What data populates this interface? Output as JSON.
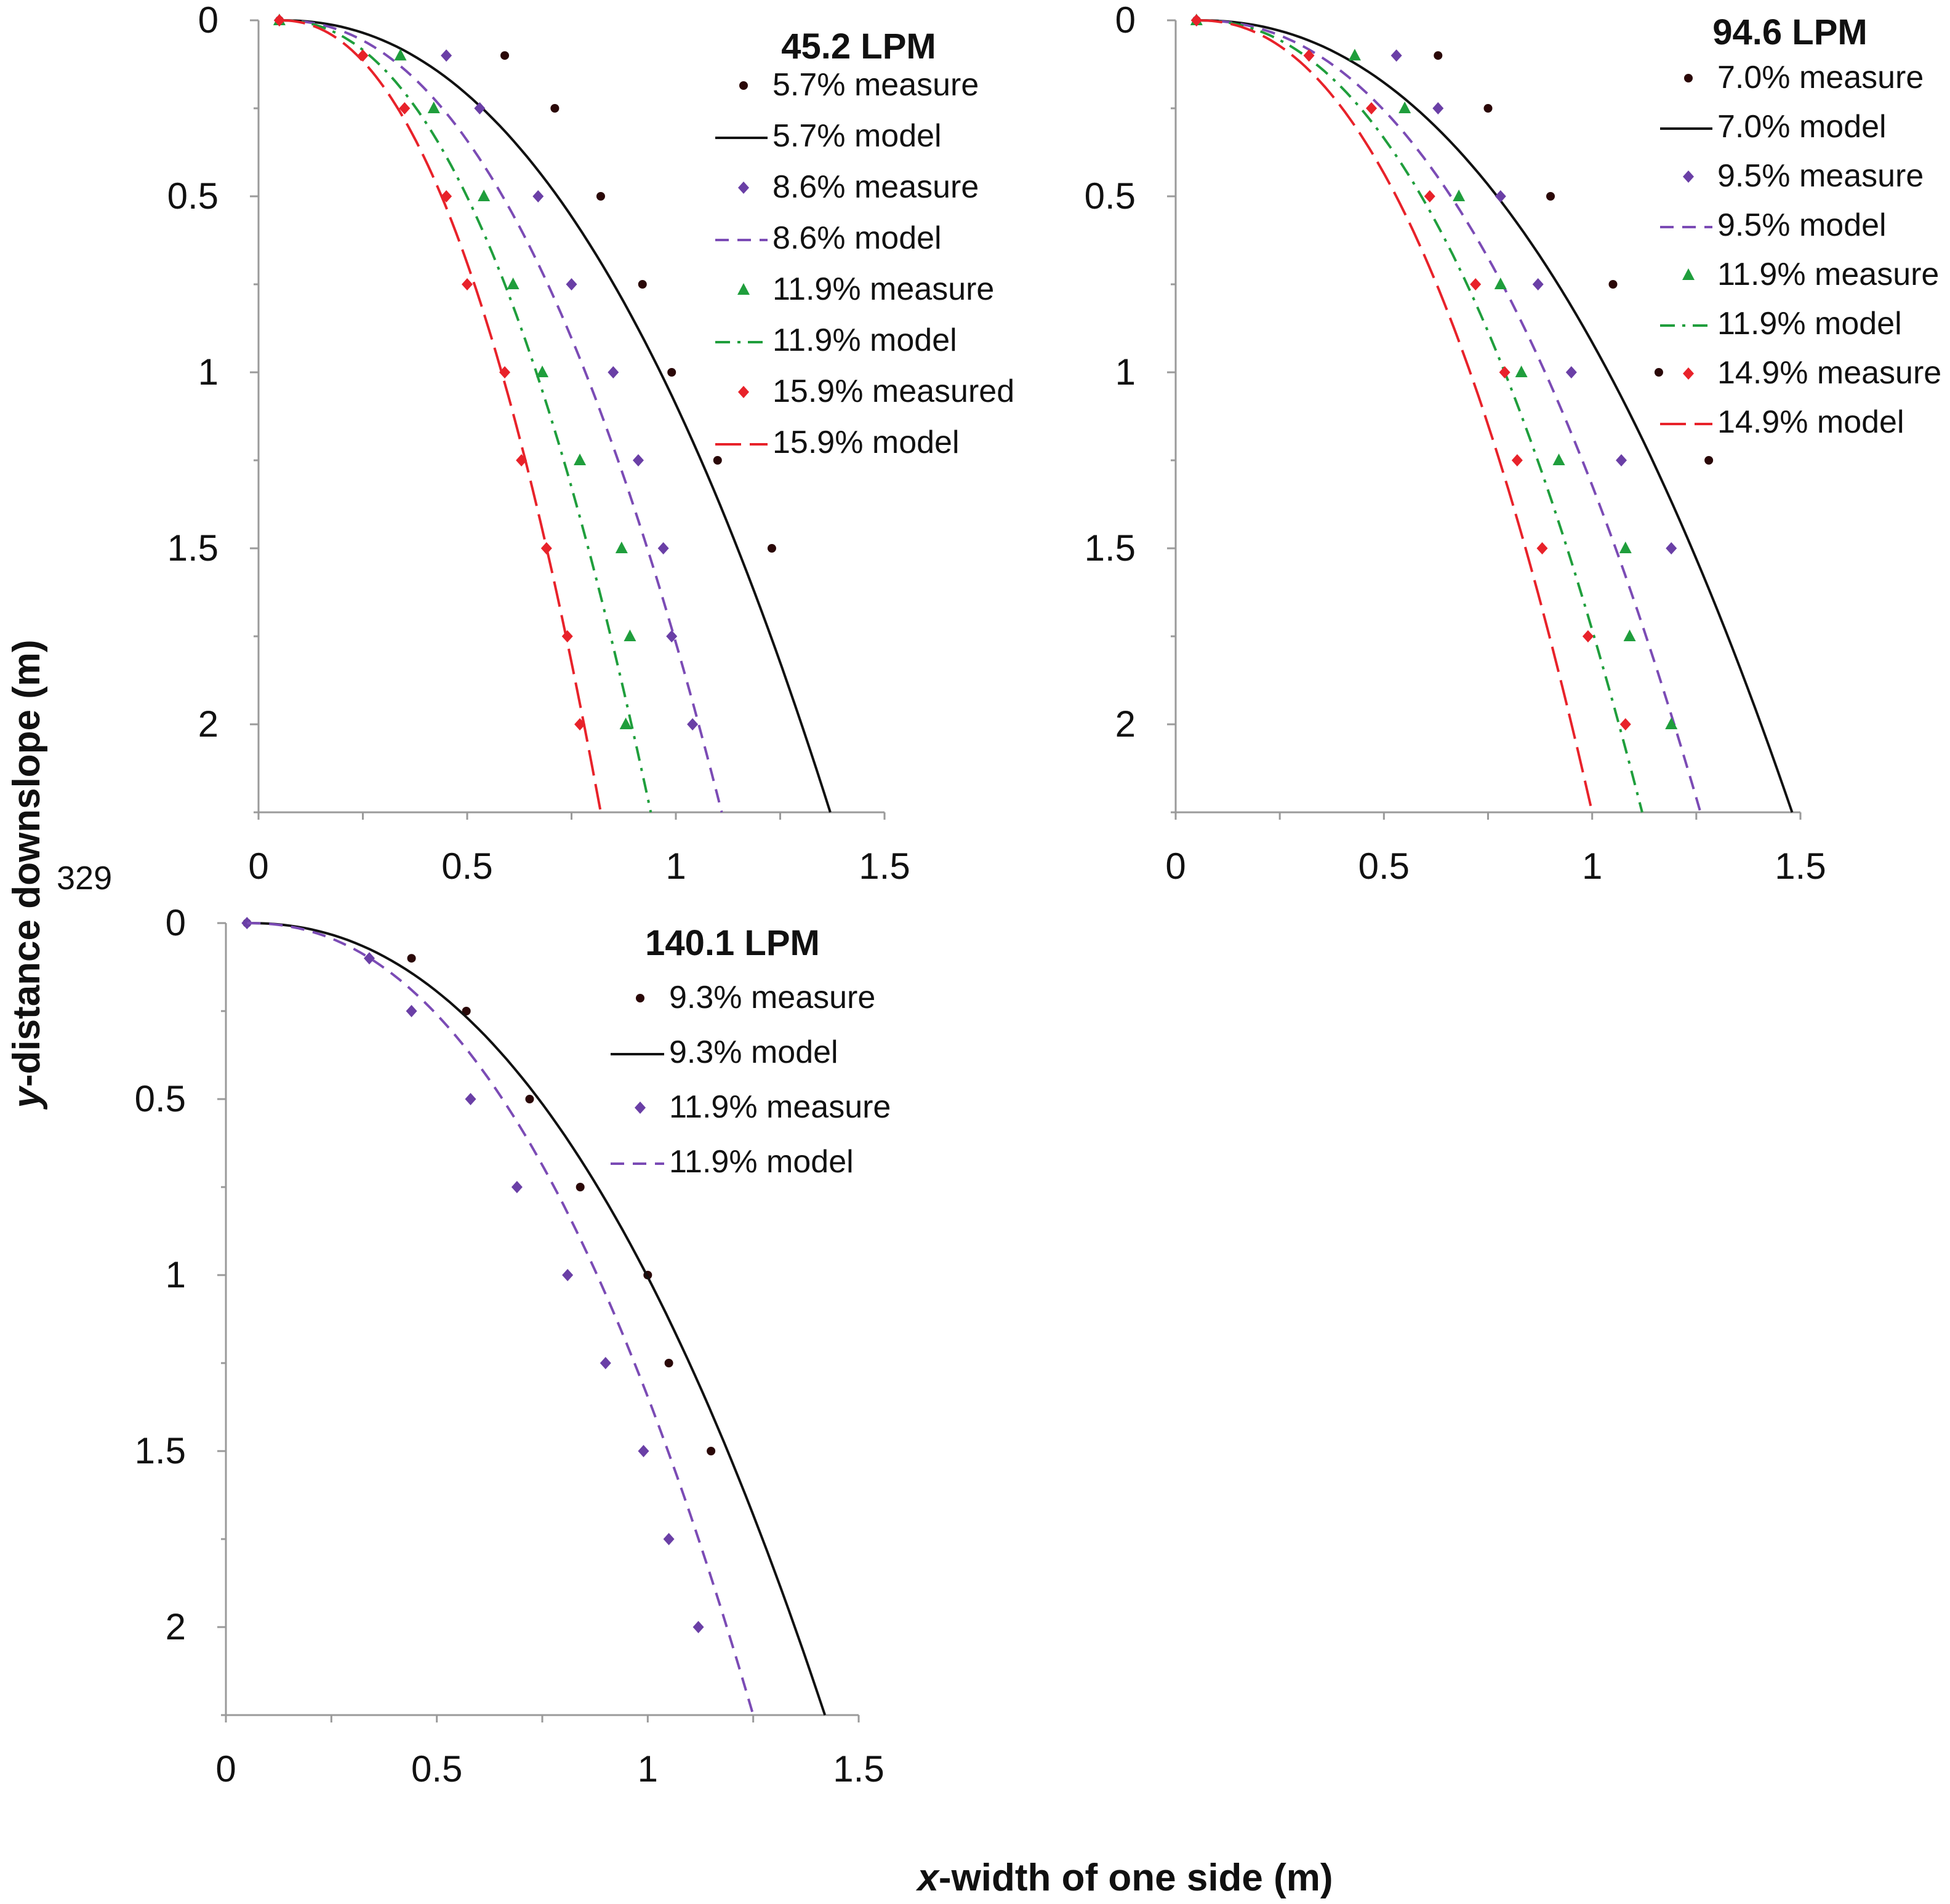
{
  "figure": {
    "xlabel": "x-width of one side (m)",
    "xlabel_italic": "x",
    "xlabel_rest": "-width of one side (m)",
    "ylabel": "y-distance downslope (m)",
    "ylabel_italic": "y",
    "ylabel_rest": "-distance downslope (m)",
    "line_number": "329"
  },
  "chart_data": [
    {
      "type": "scatter",
      "title": "45.2 LPM",
      "xlabel": "x-width of one side (m)",
      "ylabel": "y-distance downslope (m)",
      "xlim": [
        0,
        1.5
      ],
      "ylim": [
        0,
        2.25
      ],
      "y_inverted": true,
      "xticks": [
        "0",
        "0.5",
        "1",
        "1.5"
      ],
      "yticks": [
        "0",
        "0.5",
        "1",
        "1.5",
        "2"
      ],
      "series": [
        {
          "name": "5.7% measure",
          "kind": "measure",
          "marker": "circle",
          "color": "#2a0808",
          "points": [
            [
              0.05,
              0
            ],
            [
              0.59,
              0.1
            ],
            [
              0.71,
              0.25
            ],
            [
              0.82,
              0.5
            ],
            [
              0.92,
              0.75
            ],
            [
              0.99,
              1.0
            ],
            [
              1.1,
              1.25
            ],
            [
              1.23,
              1.5
            ]
          ]
        },
        {
          "name": "5.7% model",
          "kind": "model",
          "dash": "solid",
          "color": "#111111",
          "c": 1.37
        },
        {
          "name": "8.6% measure",
          "kind": "measure",
          "marker": "diamond",
          "color": "#6a3fa6",
          "points": [
            [
              0.05,
              0
            ],
            [
              0.45,
              0.1
            ],
            [
              0.53,
              0.25
            ],
            [
              0.67,
              0.5
            ],
            [
              0.75,
              0.75
            ],
            [
              0.85,
              1.0
            ],
            [
              0.91,
              1.25
            ],
            [
              0.97,
              1.5
            ],
            [
              0.99,
              1.75
            ],
            [
              1.04,
              2.0
            ]
          ]
        },
        {
          "name": "8.6% model",
          "kind": "model",
          "dash": "dash",
          "color": "#7b4bb5",
          "c": 1.11
        },
        {
          "name": "11.9% measure",
          "kind": "measure",
          "marker": "triangle",
          "color": "#1f9e3c",
          "points": [
            [
              0.05,
              0
            ],
            [
              0.34,
              0.1
            ],
            [
              0.42,
              0.25
            ],
            [
              0.54,
              0.5
            ],
            [
              0.61,
              0.75
            ],
            [
              0.68,
              1.0
            ],
            [
              0.77,
              1.25
            ],
            [
              0.87,
              1.5
            ],
            [
              0.89,
              1.75
            ],
            [
              0.88,
              2.0
            ]
          ]
        },
        {
          "name": "11.9% model",
          "kind": "model",
          "dash": "dashdot",
          "color": "#1f9e3c",
          "c": 0.94
        },
        {
          "name": "15.9% measured",
          "kind": "measure",
          "marker": "diamond",
          "color": "#e8222a",
          "points": [
            [
              0.05,
              0
            ],
            [
              0.25,
              0.1
            ],
            [
              0.35,
              0.25
            ],
            [
              0.45,
              0.5
            ],
            [
              0.5,
              0.75
            ],
            [
              0.59,
              1.0
            ],
            [
              0.63,
              1.25
            ],
            [
              0.69,
              1.5
            ],
            [
              0.74,
              1.75
            ],
            [
              0.77,
              2.0
            ]
          ]
        },
        {
          "name": "15.9% model",
          "kind": "model",
          "dash": "longdash",
          "color": "#e8222a",
          "c": 0.82
        }
      ]
    },
    {
      "type": "scatter",
      "title": "94.6 LPM",
      "xlabel": "x-width of one side (m)",
      "ylabel": "y-distance downslope (m)",
      "xlim": [
        0,
        1.5
      ],
      "ylim": [
        0,
        2.25
      ],
      "y_inverted": true,
      "xticks": [
        "0",
        "0.5",
        "1",
        "1.5"
      ],
      "yticks": [
        "0",
        "0.5",
        "1",
        "1.5",
        "2"
      ],
      "series": [
        {
          "name": "7.0% measure",
          "kind": "measure",
          "marker": "circle",
          "color": "#2a0808",
          "points": [
            [
              0.05,
              0
            ],
            [
              0.63,
              0.1
            ],
            [
              0.75,
              0.25
            ],
            [
              0.9,
              0.5
            ],
            [
              1.05,
              0.75
            ],
            [
              1.16,
              1.0
            ],
            [
              1.28,
              1.25
            ]
          ]
        },
        {
          "name": "7.0% model",
          "kind": "model",
          "dash": "solid",
          "color": "#111111",
          "c": 1.48
        },
        {
          "name": "9.5% measure",
          "kind": "measure",
          "marker": "diamond",
          "color": "#6a3fa6",
          "points": [
            [
              0.05,
              0
            ],
            [
              0.53,
              0.1
            ],
            [
              0.63,
              0.25
            ],
            [
              0.78,
              0.5
            ],
            [
              0.87,
              0.75
            ],
            [
              0.95,
              1.0
            ],
            [
              1.07,
              1.25
            ],
            [
              1.19,
              1.5
            ]
          ]
        },
        {
          "name": "9.5% model",
          "kind": "model",
          "dash": "dash",
          "color": "#7b4bb5",
          "c": 1.26
        },
        {
          "name": "11.9% measure",
          "kind": "measure",
          "marker": "triangle",
          "color": "#1f9e3c",
          "points": [
            [
              0.05,
              0
            ],
            [
              0.43,
              0.1
            ],
            [
              0.55,
              0.25
            ],
            [
              0.68,
              0.5
            ],
            [
              0.78,
              0.75
            ],
            [
              0.83,
              1.0
            ],
            [
              0.92,
              1.25
            ],
            [
              1.08,
              1.5
            ],
            [
              1.09,
              1.75
            ],
            [
              1.19,
              2.0
            ]
          ]
        },
        {
          "name": "11.9% model",
          "kind": "model",
          "dash": "dashdot",
          "color": "#1f9e3c",
          "c": 1.12
        },
        {
          "name": "14.9% measure",
          "kind": "measure",
          "marker": "diamond",
          "color": "#e8222a",
          "points": [
            [
              0.05,
              0
            ],
            [
              0.32,
              0.1
            ],
            [
              0.47,
              0.25
            ],
            [
              0.61,
              0.5
            ],
            [
              0.72,
              0.75
            ],
            [
              0.79,
              1.0
            ],
            [
              0.82,
              1.25
            ],
            [
              0.88,
              1.5
            ],
            [
              0.99,
              1.75
            ],
            [
              1.08,
              2.0
            ]
          ]
        },
        {
          "name": "14.9% model",
          "kind": "model",
          "dash": "longdash",
          "color": "#e8222a",
          "c": 1.0
        }
      ]
    },
    {
      "type": "scatter",
      "title": "140.1 LPM",
      "xlabel": "x-width of one side (m)",
      "ylabel": "y-distance downslope (m)",
      "xlim": [
        0,
        1.5
      ],
      "ylim": [
        0,
        2.25
      ],
      "y_inverted": true,
      "xticks": [
        "0",
        "0.5",
        "1",
        "1.5"
      ],
      "yticks": [
        "0",
        "0.5",
        "1",
        "1.5",
        "2"
      ],
      "series": [
        {
          "name": "9.3% measure",
          "kind": "measure",
          "marker": "circle",
          "color": "#2a0808",
          "points": [
            [
              0.05,
              0
            ],
            [
              0.44,
              0.1
            ],
            [
              0.57,
              0.25
            ],
            [
              0.72,
              0.5
            ],
            [
              0.84,
              0.75
            ],
            [
              1.0,
              1.0
            ],
            [
              1.05,
              1.25
            ],
            [
              1.15,
              1.5
            ]
          ]
        },
        {
          "name": "9.3% model",
          "kind": "model",
          "dash": "solid",
          "color": "#111111",
          "c": 1.42
        },
        {
          "name": "11.9% measure",
          "kind": "measure",
          "marker": "diamond",
          "color": "#6a3fa6",
          "points": [
            [
              0.05,
              0
            ],
            [
              0.34,
              0.1
            ],
            [
              0.44,
              0.25
            ],
            [
              0.58,
              0.5
            ],
            [
              0.69,
              0.75
            ],
            [
              0.81,
              1.0
            ],
            [
              0.9,
              1.25
            ],
            [
              0.99,
              1.5
            ],
            [
              1.05,
              1.75
            ],
            [
              1.12,
              2.0
            ]
          ]
        },
        {
          "name": "11.9% model",
          "kind": "model",
          "dash": "dash",
          "color": "#7b4bb5",
          "c": 1.25
        }
      ]
    }
  ]
}
